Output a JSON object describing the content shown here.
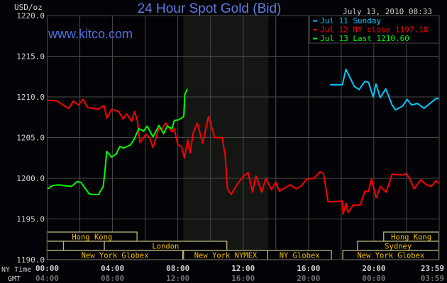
{
  "chart_data": {
    "type": "line",
    "title": "24 Hour Spot Gold (Bid)",
    "ylabel": "USD/oz",
    "watermark": "www.kitco.com",
    "timestamp": "July 13, 2010 08:33",
    "xlim": [
      0,
      24
    ],
    "ylim": [
      1190,
      1220
    ],
    "grid": true,
    "legend_position": "top-right",
    "y_ticks": [
      "1220.0",
      "1215.0",
      "1210.0",
      "1205.0",
      "1200.0",
      "1195.0",
      "1190.0"
    ],
    "y_tick_values": [
      1220,
      1215,
      1210,
      1205,
      1200,
      1195,
      1190
    ],
    "x_row_labels": [
      "NY Time",
      "GMT"
    ],
    "x_ticks_ny": [
      "00:00",
      "04:00",
      "08:00",
      "12:00",
      "16:00",
      "20:00",
      "23:59"
    ],
    "x_ticks_gmt": [
      "04:00",
      "08:00",
      "12:00",
      "16:00",
      "20:00",
      "00:00",
      "03:59"
    ],
    "x_tick_values": [
      0,
      4,
      8,
      12,
      16,
      20,
      23.98
    ],
    "shaded_range_hours": [
      8.33,
      13.54
    ],
    "colors": {
      "background": "#030206",
      "grid": "#4a4a4a",
      "shade": "#141614",
      "session": "#f0c000",
      "session_border": "#b8b478",
      "title": "#5b7fe6",
      "axis_text": "#d0d0d0",
      "gmt_text": "#707070"
    },
    "series": [
      {
        "name": "Jul 11 Sunday",
        "legend": "Jul 11 Sunday",
        "color": "#00c8ff",
        "points": [
          [
            17.32,
            1211.5
          ],
          [
            18.07,
            1211.5
          ],
          [
            18.29,
            1213.4
          ],
          [
            18.51,
            1212.5
          ],
          [
            18.8,
            1211.3
          ],
          [
            19.09,
            1210.9
          ],
          [
            19.45,
            1211.9
          ],
          [
            19.67,
            1211.8
          ],
          [
            19.96,
            1210.0
          ],
          [
            20.13,
            1211.6
          ],
          [
            20.39,
            1209.9
          ],
          [
            20.73,
            1211.0
          ],
          [
            21.12,
            1209.0
          ],
          [
            21.33,
            1208.4
          ],
          [
            21.77,
            1208.9
          ],
          [
            22.03,
            1209.7
          ],
          [
            22.32,
            1209.0
          ],
          [
            22.67,
            1209.2
          ],
          [
            23.07,
            1208.6
          ],
          [
            23.43,
            1209.2
          ],
          [
            23.8,
            1209.8
          ],
          [
            23.98,
            1209.8
          ]
        ]
      },
      {
        "name": "Jul 12 NY close 1197.10",
        "legend": "Jul 12 NY close 1197.10",
        "color": "#ff0000",
        "points": [
          [
            0.03,
            1209.6
          ],
          [
            0.61,
            1209.5
          ],
          [
            1.04,
            1208.9
          ],
          [
            1.33,
            1208.6
          ],
          [
            1.6,
            1209.5
          ],
          [
            1.91,
            1209.0
          ],
          [
            2.2,
            1209.7
          ],
          [
            2.48,
            1208.7
          ],
          [
            3.07,
            1208.5
          ],
          [
            3.48,
            1208.9
          ],
          [
            3.65,
            1207.4
          ],
          [
            3.94,
            1208.5
          ],
          [
            4.38,
            1208.2
          ],
          [
            4.65,
            1207.3
          ],
          [
            4.87,
            1207.9
          ],
          [
            5.17,
            1207.0
          ],
          [
            5.35,
            1208.2
          ],
          [
            5.52,
            1207.1
          ],
          [
            5.68,
            1204.4
          ],
          [
            6.04,
            1205.4
          ],
          [
            6.26,
            1205.0
          ],
          [
            6.48,
            1203.8
          ],
          [
            6.83,
            1206.1
          ],
          [
            7.04,
            1206.1
          ],
          [
            7.26,
            1206.8
          ],
          [
            7.64,
            1205.7
          ],
          [
            7.78,
            1206.1
          ],
          [
            8.0,
            1204.1
          ],
          [
            8.22,
            1203.9
          ],
          [
            8.4,
            1202.5
          ],
          [
            8.61,
            1204.7
          ],
          [
            8.75,
            1203.1
          ],
          [
            8.94,
            1205.6
          ],
          [
            9.19,
            1206.8
          ],
          [
            9.52,
            1204.3
          ],
          [
            9.88,
            1207.6
          ],
          [
            10.25,
            1205.0
          ],
          [
            10.71,
            1205.0
          ],
          [
            10.9,
            1202.8
          ],
          [
            11.04,
            1198.7
          ],
          [
            11.26,
            1198.0
          ],
          [
            11.61,
            1199.2
          ],
          [
            11.99,
            1200.2
          ],
          [
            12.3,
            1200.7
          ],
          [
            12.57,
            1198.3
          ],
          [
            12.78,
            1200.3
          ],
          [
            13.13,
            1198.3
          ],
          [
            13.39,
            1200.0
          ],
          [
            13.73,
            1198.6
          ],
          [
            14.0,
            1199.5
          ],
          [
            14.22,
            1198.4
          ],
          [
            14.87,
            1199.2
          ],
          [
            15.25,
            1198.7
          ],
          [
            15.52,
            1199.0
          ],
          [
            15.9,
            1199.9
          ],
          [
            16.33,
            1200.0
          ],
          [
            16.7,
            1200.8
          ],
          [
            16.91,
            1200.6
          ],
          [
            17.2,
            1197.1
          ],
          [
            18.07,
            1197.2
          ],
          [
            18.12,
            1195.6
          ],
          [
            18.29,
            1196.9
          ],
          [
            18.43,
            1195.8
          ],
          [
            18.73,
            1196.7
          ],
          [
            19.16,
            1196.7
          ],
          [
            19.45,
            1198.4
          ],
          [
            19.67,
            1198.4
          ],
          [
            19.86,
            1199.9
          ],
          [
            20.14,
            1197.6
          ],
          [
            20.39,
            1199.0
          ],
          [
            20.75,
            1198.3
          ],
          [
            21.12,
            1200.5
          ],
          [
            21.77,
            1200.4
          ],
          [
            21.99,
            1200.6
          ],
          [
            22.2,
            1199.9
          ],
          [
            22.47,
            1198.7
          ],
          [
            22.86,
            1199.8
          ],
          [
            23.22,
            1199.2
          ],
          [
            23.51,
            1199.0
          ],
          [
            23.8,
            1199.7
          ],
          [
            23.98,
            1199.4
          ]
        ]
      },
      {
        "name": "Jul 13 Last 1210.60",
        "legend": "Jul 13 Last 1210.60",
        "color": "#00ff00",
        "points": [
          [
            0.03,
            1198.7
          ],
          [
            0.32,
            1199.1
          ],
          [
            0.68,
            1199.2
          ],
          [
            1.04,
            1199.1
          ],
          [
            1.48,
            1199.0
          ],
          [
            1.84,
            1199.6
          ],
          [
            2.06,
            1199.5
          ],
          [
            2.27,
            1198.9
          ],
          [
            2.57,
            1198.1
          ],
          [
            2.78,
            1198.0
          ],
          [
            3.14,
            1198.0
          ],
          [
            3.43,
            1199.0
          ],
          [
            3.53,
            1200.8
          ],
          [
            3.65,
            1203.3
          ],
          [
            3.94,
            1202.6
          ],
          [
            4.23,
            1203.0
          ],
          [
            4.45,
            1203.9
          ],
          [
            4.67,
            1203.7
          ],
          [
            5.1,
            1204.1
          ],
          [
            5.32,
            1204.8
          ],
          [
            5.61,
            1206.1
          ],
          [
            5.9,
            1205.8
          ],
          [
            6.12,
            1206.4
          ],
          [
            6.48,
            1205.1
          ],
          [
            6.84,
            1206.5
          ],
          [
            7.13,
            1205.5
          ],
          [
            7.35,
            1206.4
          ],
          [
            7.64,
            1206.1
          ],
          [
            7.78,
            1207.1
          ],
          [
            8.07,
            1207.2
          ],
          [
            8.36,
            1207.6
          ],
          [
            8.43,
            1210.3
          ],
          [
            8.58,
            1211.0
          ]
        ]
      }
    ],
    "sessions": [
      {
        "label": "Hong Kong",
        "start": 0,
        "end": 5.5,
        "row": 0
      },
      {
        "label": "Hong Kong",
        "start": 20.6,
        "end": 23.98,
        "row": 0
      },
      {
        "label": "",
        "start": 0,
        "end": 1,
        "row": 1
      },
      {
        "label": "",
        "start": 1,
        "end": 3.5,
        "row": 1
      },
      {
        "label": "London",
        "start": 3.5,
        "end": 11,
        "row": 1
      },
      {
        "label": "Sydney",
        "start": 19,
        "end": 23.98,
        "row": 1
      },
      {
        "label": "New York Globex",
        "start": 0,
        "end": 8.3,
        "row": 2
      },
      {
        "label": "New York NYMEX",
        "start": 8.35,
        "end": 13.5,
        "row": 2
      },
      {
        "label": "NY Globex",
        "start": 13.5,
        "end": 17.4,
        "row": 2
      },
      {
        "label": "New York Globex",
        "start": 18.1,
        "end": 23.98,
        "row": 2
      }
    ]
  }
}
